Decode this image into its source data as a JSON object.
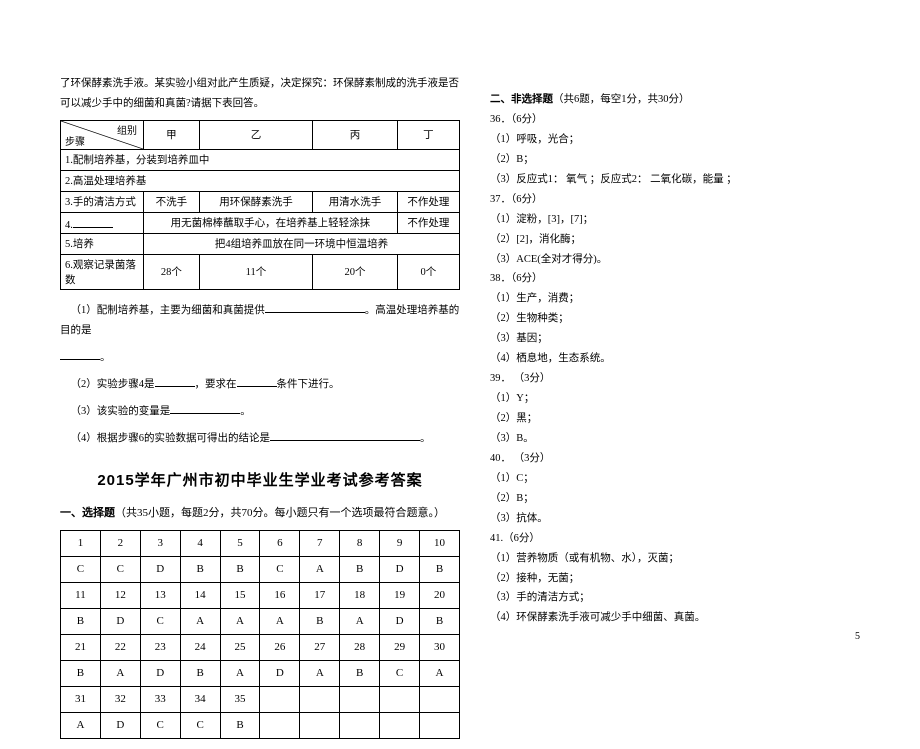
{
  "intro": "了环保酵素洗手液。某实验小组对此产生质疑，决定探究：环保酵素制成的洗手液是否可以减少手中的细菌和真菌?请据下表回答。",
  "expTable": {
    "diagTop": "组别",
    "diagBot": "步骤",
    "groups": [
      "甲",
      "乙",
      "丙",
      "丁"
    ],
    "rows": [
      {
        "label": "1.配制培养基，分装到培养皿中",
        "cells": [
          "",
          "",
          "",
          ""
        ],
        "span": 4
      },
      {
        "label": "2.高温处理培养基",
        "cells": [
          "",
          "",
          "",
          ""
        ],
        "span": 4
      },
      {
        "label": "3.手的清洁方式",
        "cells": [
          "不洗手",
          "用环保酵素洗手",
          "用清水洗手",
          "不作处理"
        ],
        "span": 0
      },
      {
        "label": "4.",
        "blank": true,
        "cells3": "用无菌棉棒蘸取手心，在培养基上轻轻涂抹",
        "last": "不作处理"
      },
      {
        "label": "5.培养",
        "cells": [
          "把4组培养皿放在同一环境中恒温培养",
          "",
          "",
          ""
        ],
        "span": 4
      },
      {
        "label": "6.观察记录菌落数",
        "cells": [
          "28个",
          "11个",
          "20个",
          "0个"
        ],
        "span": 0
      }
    ]
  },
  "q1": "（1）配制培养基，主要为细菌和真菌提供",
  "q1b": "。高温处理培养基的目的是",
  "q1c": "。",
  "q2a": "（2）实验步骤4是",
  "q2b": "，要求在",
  "q2c": "条件下进行。",
  "q3": "（3）该实验的变量是",
  "q3b": "。",
  "q4": "（4）根据步骤6的实验数据可得出的结论是",
  "q4b": "。",
  "ansTitle": "2015学年广州市初中毕业生学业考试参考答案",
  "sec1Label": "一、选择题",
  "sec1Note": "（共35小题，每题2分，共70分。每小题只有一个选项最符合题意。）",
  "ansTable": {
    "nums": [
      [
        "1",
        "2",
        "3",
        "4",
        "5",
        "6",
        "7",
        "8",
        "9",
        "10"
      ],
      [
        "11",
        "12",
        "13",
        "14",
        "15",
        "16",
        "17",
        "18",
        "19",
        "20"
      ],
      [
        "21",
        "22",
        "23",
        "24",
        "25",
        "26",
        "27",
        "28",
        "29",
        "30"
      ],
      [
        "31",
        "32",
        "33",
        "34",
        "35",
        "",
        "",
        "",
        "",
        ""
      ]
    ],
    "vals": [
      [
        "C",
        "C",
        "D",
        "B",
        "B",
        "C",
        "A",
        "B",
        "D",
        "B"
      ],
      [
        "B",
        "D",
        "C",
        "A",
        "A",
        "A",
        "B",
        "A",
        "D",
        "B"
      ],
      [
        "B",
        "A",
        "D",
        "B",
        "A",
        "D",
        "A",
        "B",
        "C",
        "A"
      ],
      [
        "A",
        "D",
        "C",
        "C",
        "B",
        "",
        "",
        "",
        "",
        ""
      ]
    ]
  },
  "sec2Label": "二、非选择题",
  "sec2Note": "（共6题，每空1分，共30分）",
  "frq": [
    "36．（6分）",
    "（1）呼吸，光合；",
    "（2）B；",
    "（3）反应式1：  氧气  ；反应式2：  二氧化碳，能量  ；",
    "37．（6分）",
    "（1）淀粉，[3]，[7]；",
    "（2）[2]，消化酶；",
    "（3）ACE(全对才得分)。",
    "38．（6分）",
    "（1）生产，消费；",
    "（2）生物种类；",
    "（3）基因；",
    "（4）栖息地，生态系统。",
    "39． （3分）",
    "（1）Y；",
    "（2）黑；",
    "（3）B。",
    "40． （3分）",
    "（1）C；",
    "（2）B；",
    "（3）抗体。",
    "41.（6分）",
    "（1）营养物质（或有机物、水），灭菌；",
    "（2）接种，无菌；",
    "（3）手的清洁方式；",
    "（4）环保酵素洗手液可减少手中细菌、真菌。"
  ],
  "pageNum": "5"
}
